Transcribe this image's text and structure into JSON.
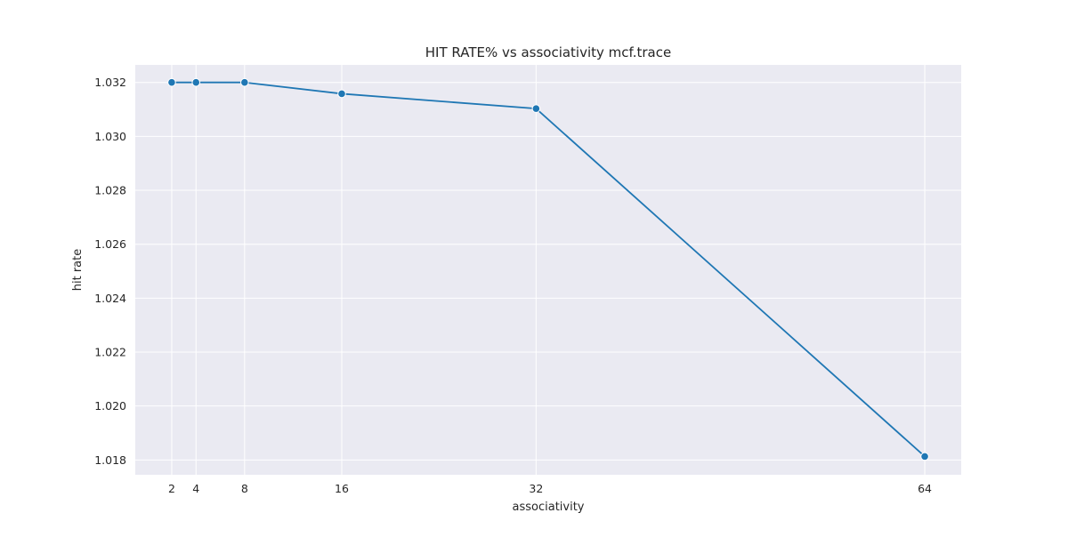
{
  "chart_data": {
    "type": "line",
    "title": "HIT RATE% vs associativity mcf.trace",
    "xlabel": "associativity",
    "ylabel": "hit rate",
    "x": [
      2,
      4,
      8,
      16,
      32,
      64
    ],
    "series": [
      {
        "values": [
          1.032,
          1.032,
          1.032,
          1.03158,
          1.03103,
          1.01813
        ]
      }
    ],
    "xticks": [
      2,
      4,
      8,
      16,
      32,
      64
    ],
    "xtick_labels": [
      "2",
      "4",
      "8",
      "16",
      "32",
      "64"
    ],
    "yticks": [
      1.018,
      1.02,
      1.022,
      1.024,
      1.026,
      1.028,
      1.03,
      1.032
    ],
    "ytick_labels": [
      "1.018",
      "1.020",
      "1.022",
      "1.024",
      "1.026",
      "1.028",
      "1.030",
      "1.032"
    ],
    "xlim": [
      -1.0,
      67.0
    ],
    "ylim": [
      1.01745,
      1.03265
    ],
    "grid": true,
    "legend": "none",
    "colors": {
      "line": "#1f77b4",
      "plot_background": "#eaeaf2",
      "grid": "#ffffff",
      "marker_edge": "#ffffff"
    }
  }
}
